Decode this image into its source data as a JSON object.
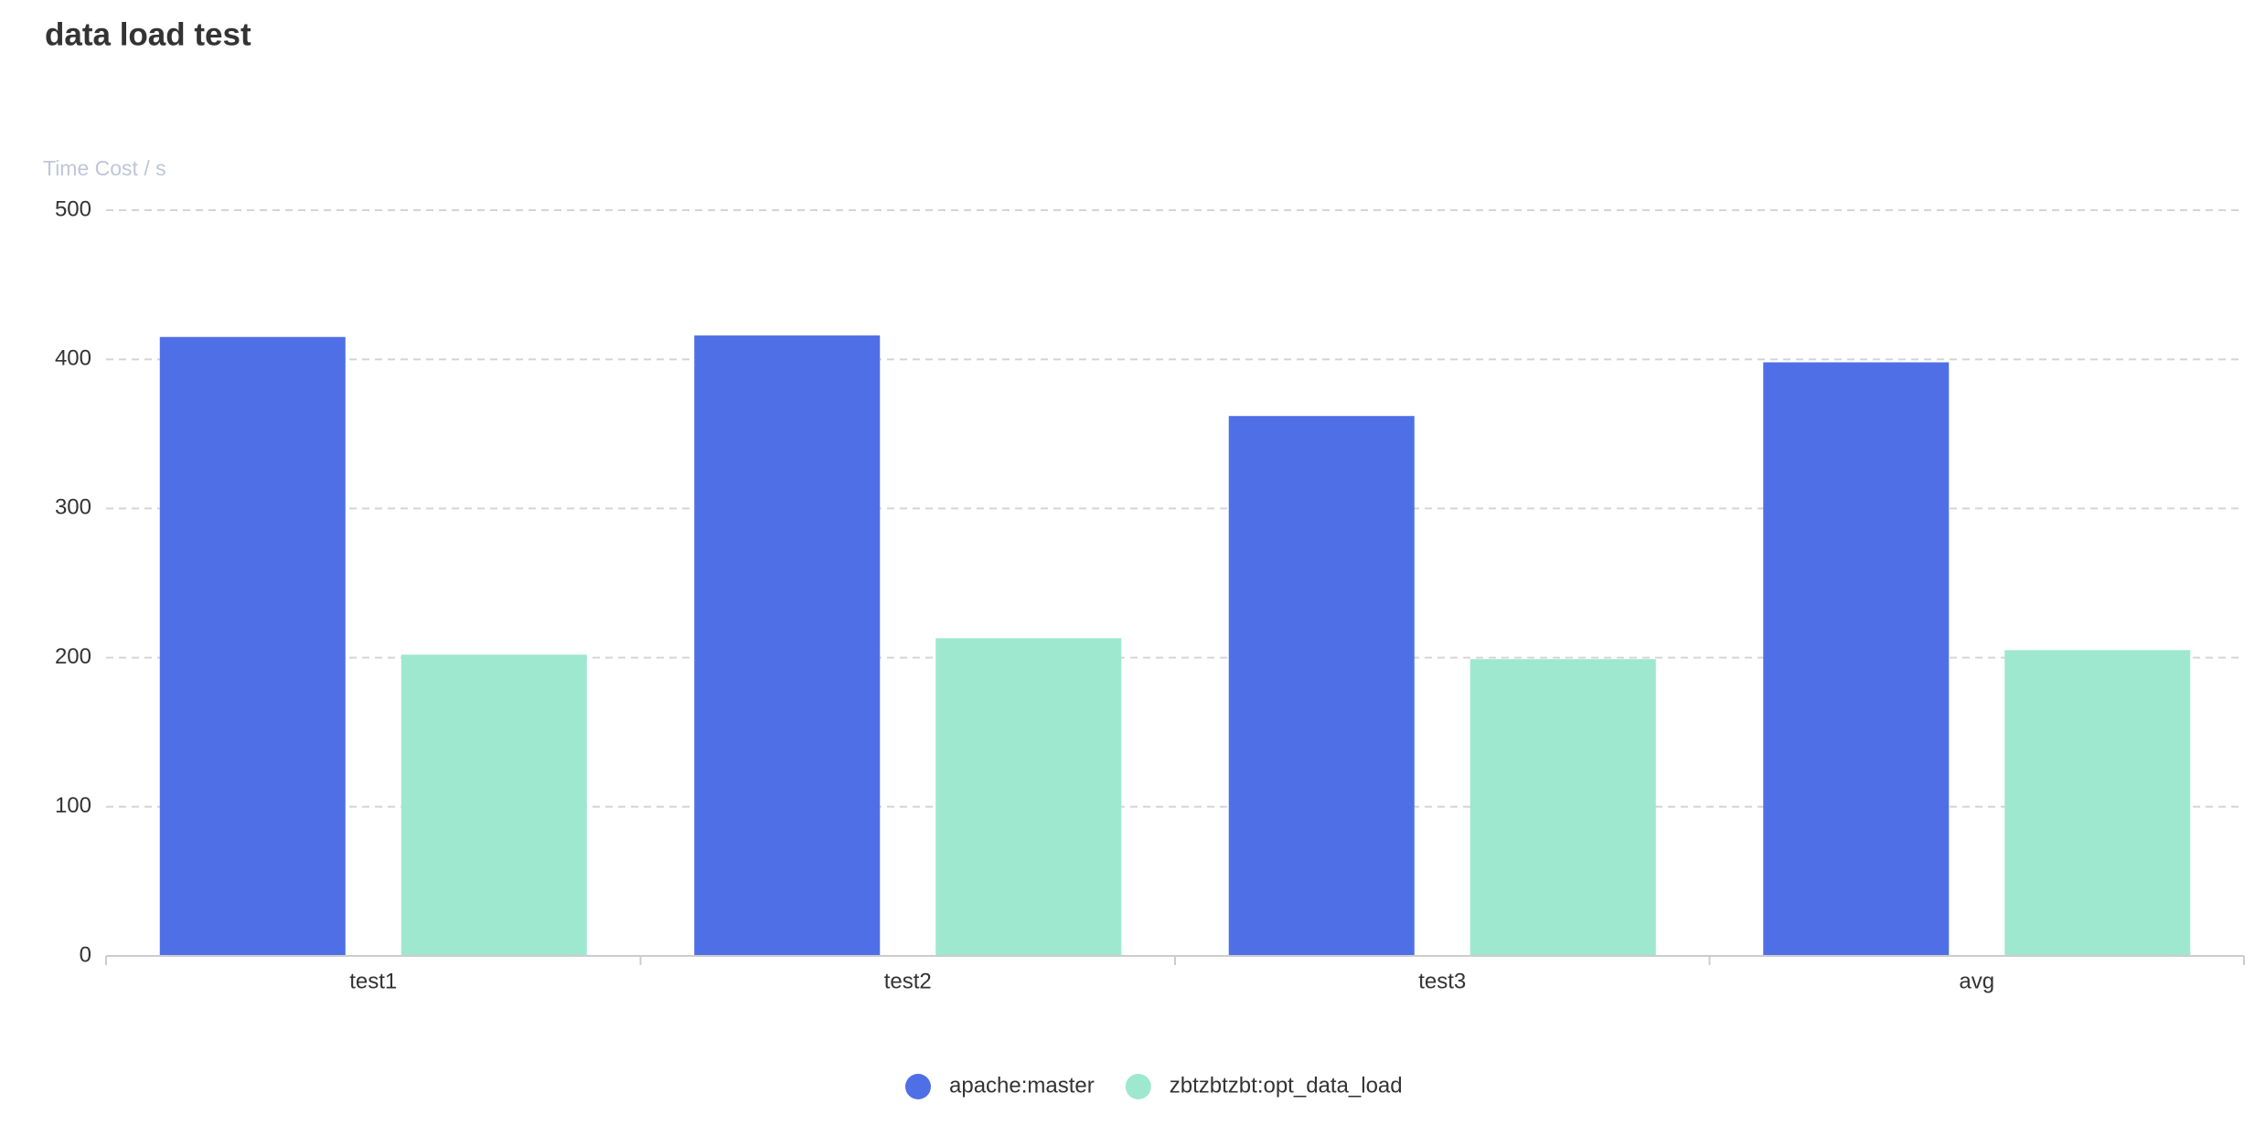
{
  "chart_data": {
    "type": "bar",
    "title": "data load test",
    "y_label": "Time Cost / s",
    "categories": [
      "test1",
      "test2",
      "test3",
      "avg"
    ],
    "series": [
      {
        "name": "apache:master",
        "color": "#4e6fe6",
        "values": [
          415,
          416,
          362,
          398
        ]
      },
      {
        "name": "zbtzbtzbt:opt_data_load",
        "color": "#9ee8cf",
        "values": [
          202,
          213,
          199,
          205
        ]
      }
    ],
    "ylim": [
      0,
      500
    ],
    "yticks": [
      0,
      100,
      200,
      300,
      400,
      500
    ],
    "grid": true,
    "legend": "bottom"
  }
}
